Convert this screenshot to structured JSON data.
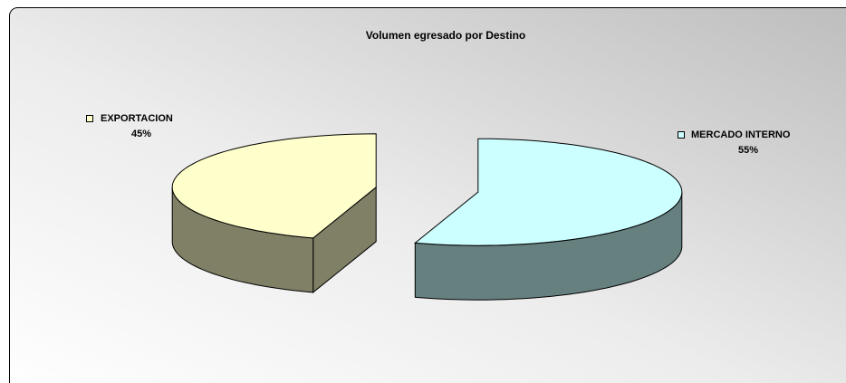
{
  "chart_data": {
    "type": "pie3d",
    "title": "Volumen egresado por Destino",
    "categories": [
      "MERCADO INTERNO",
      "EXPORTACION"
    ],
    "values": [
      55,
      45
    ],
    "value_labels": [
      "55%",
      "45%"
    ],
    "colors": [
      "#ccffff",
      "#ffffcc"
    ]
  }
}
